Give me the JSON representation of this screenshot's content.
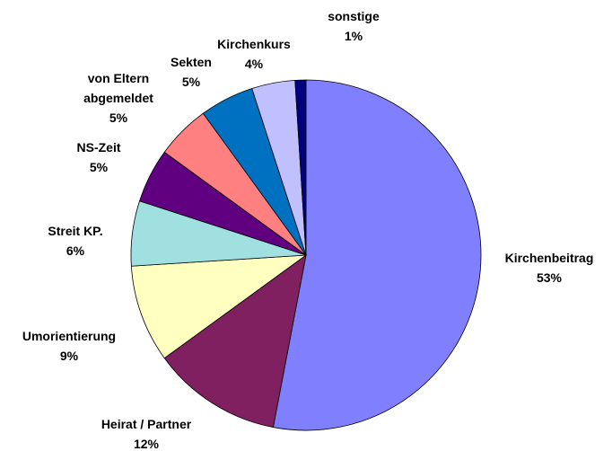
{
  "chart_data": {
    "type": "pie",
    "categories": [
      "Kirchenbeitrag",
      "Heirat / Partner",
      "Umorientierung",
      "Streit KP.",
      "NS-Zeit",
      "von Eltern abgemeldet",
      "Sekten",
      "Kirchenkurs",
      "sonstige"
    ],
    "values": [
      53,
      12,
      9,
      6,
      5,
      5,
      5,
      4,
      1
    ],
    "value_labels": [
      "53%",
      "12%",
      "9%",
      "6%",
      "5%",
      "5%",
      "5%",
      "4%",
      "1%"
    ],
    "colors": [
      "#8080ff",
      "#802060",
      "#ffffc0",
      "#a0e0e0",
      "#600080",
      "#ff8080",
      "#0070c0",
      "#c0c0ff",
      "#000080"
    ]
  }
}
